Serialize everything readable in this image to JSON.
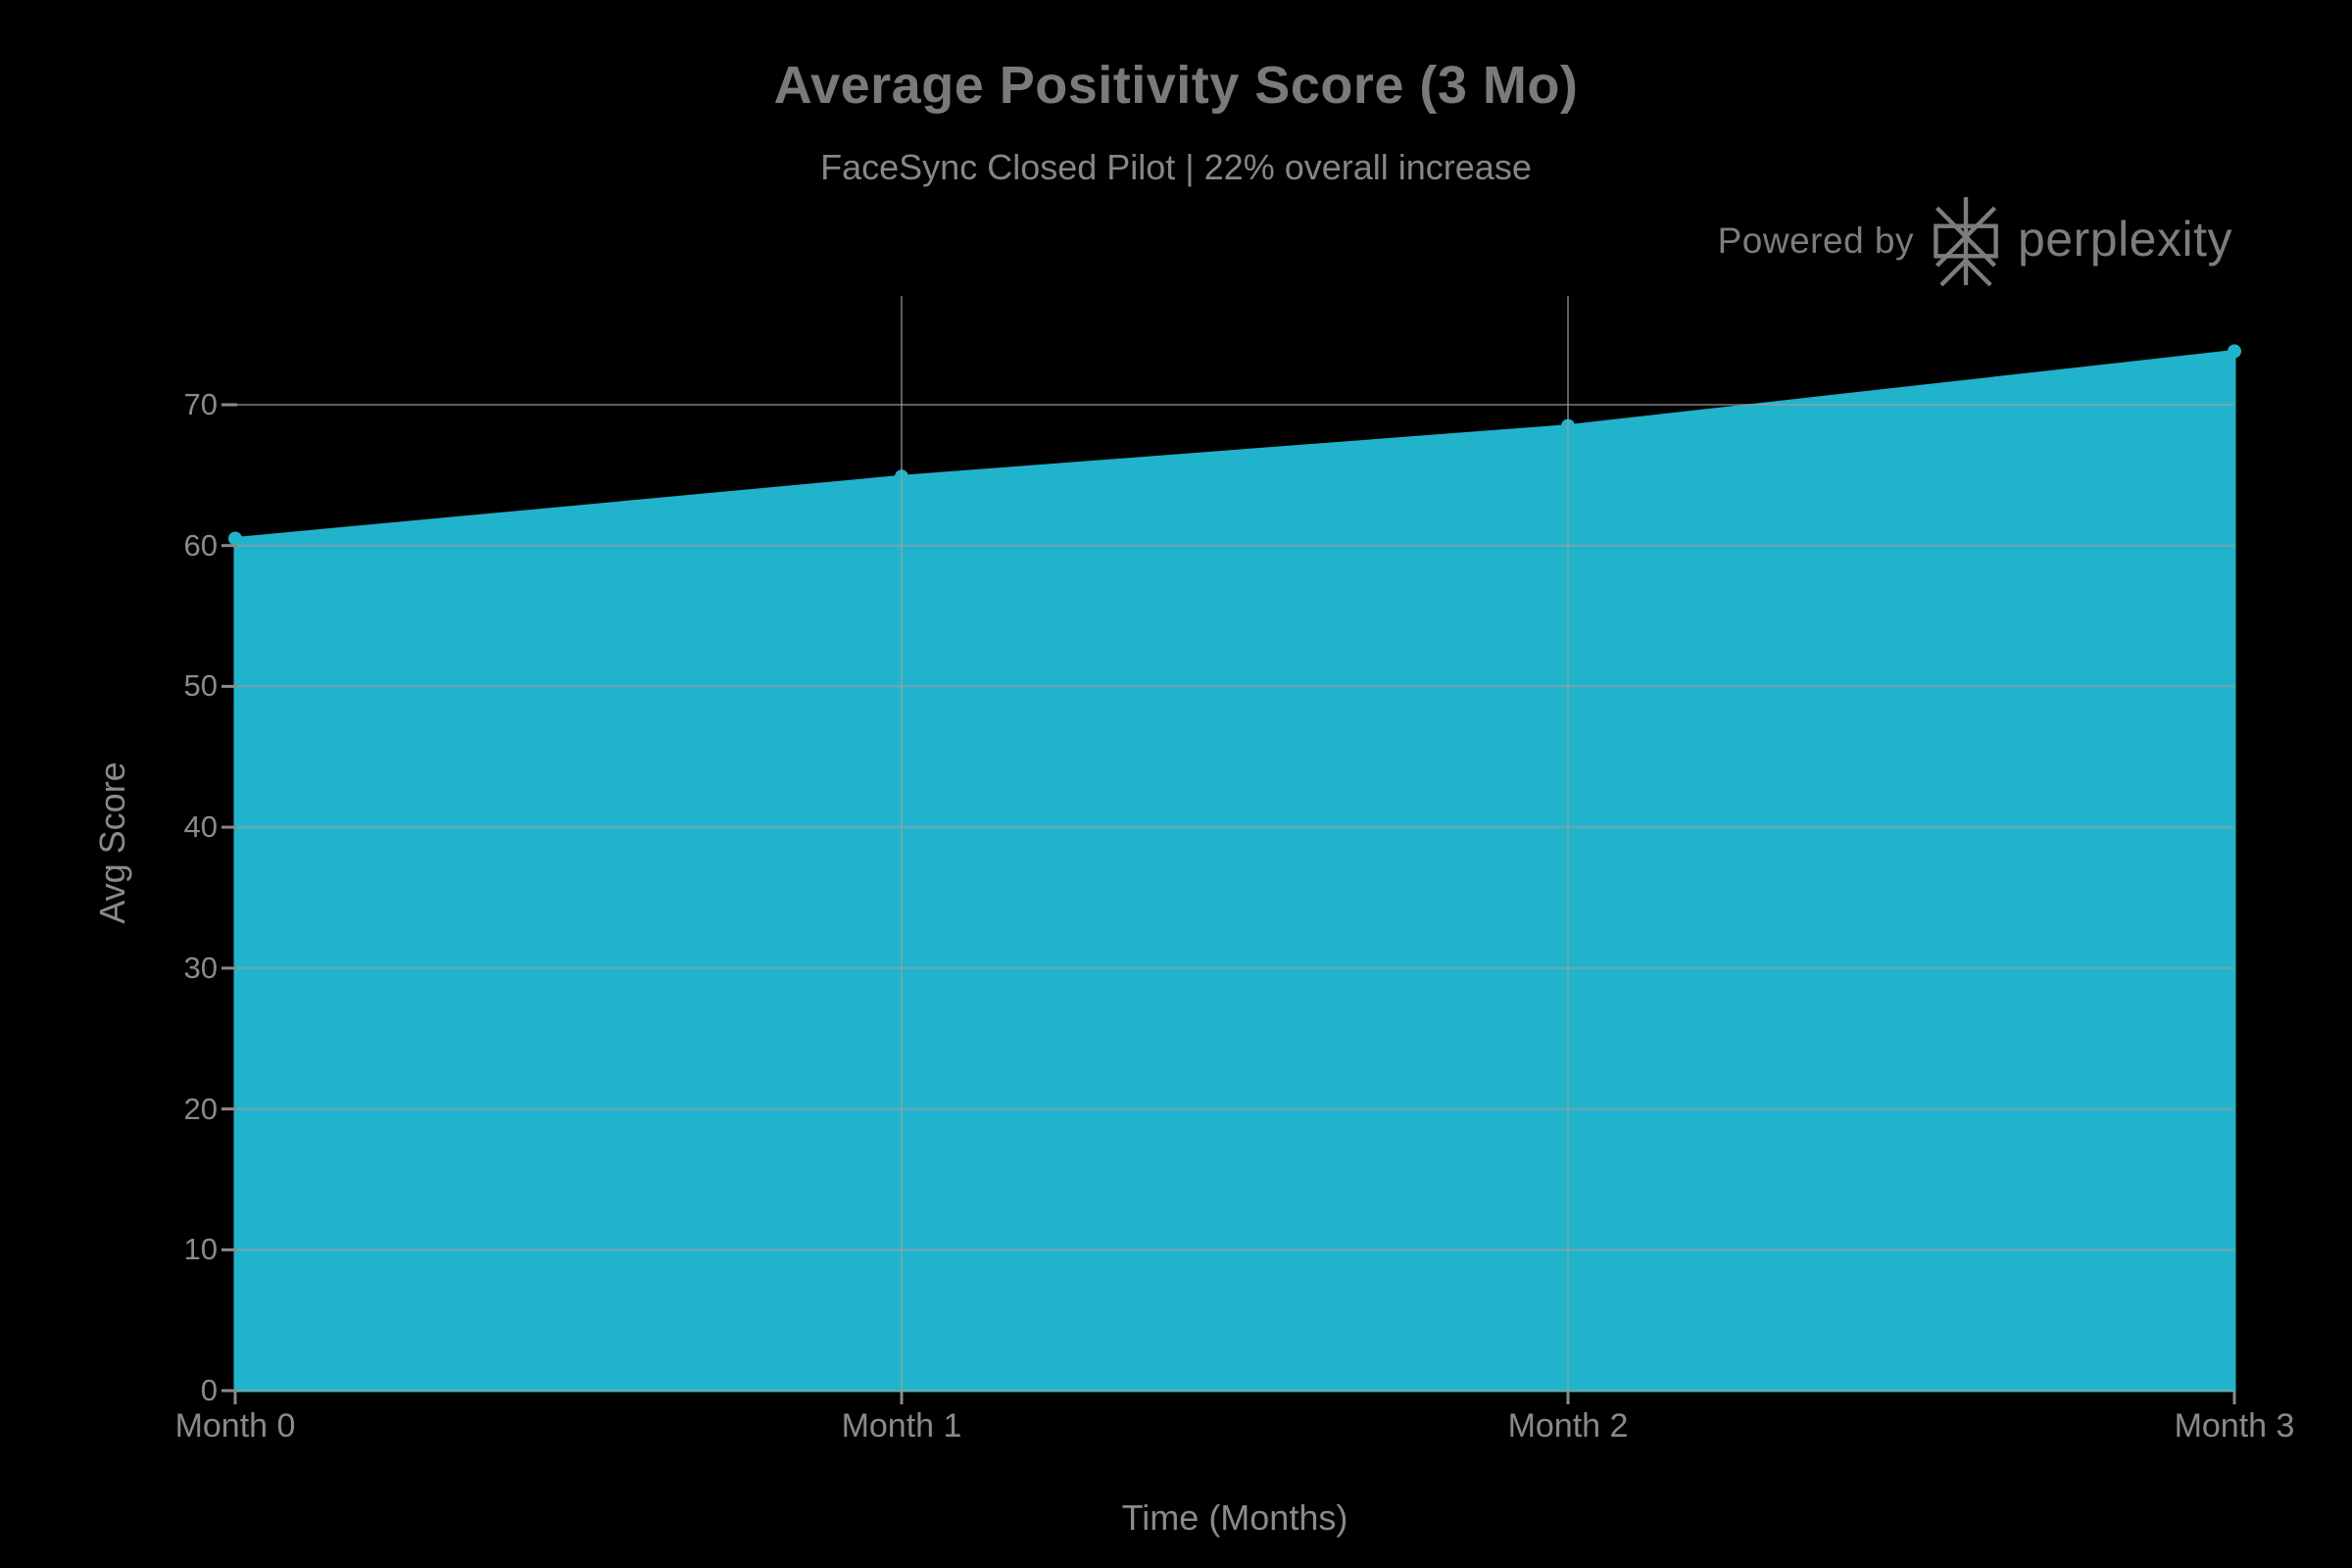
{
  "header": {
    "title": "Average Positivity Score (3 Mo)",
    "subtitle": "FaceSync Closed Pilot | 22% overall increase"
  },
  "branding": {
    "powered_by_label": "Powered by",
    "brand_name": "perplexity",
    "logo_icon": "perplexity-asterisk-icon",
    "color": "#7d7d7d"
  },
  "chart_data": {
    "type": "area",
    "title": "Average Positivity Score (3 Mo)",
    "subtitle": "FaceSync Closed Pilot | 22% overall increase",
    "xlabel": "Time (Months)",
    "ylabel": "Avg Score",
    "categories": [
      "Month 0",
      "Month 1",
      "Month 2",
      "Month 3"
    ],
    "x": [
      0,
      1,
      2,
      3
    ],
    "values": [
      60.5,
      64.9,
      68.5,
      73.8
    ],
    "yticks": [
      0,
      10,
      20,
      30,
      40,
      50,
      60,
      70
    ],
    "ylim": [
      0,
      77.7
    ],
    "xlim": [
      0,
      3
    ],
    "grid": true,
    "vgrid_at_x": [
      1,
      2
    ],
    "legend": "none",
    "colors": {
      "background": "#000000",
      "area_fill": "#21b3cb",
      "marker": "#21b3cb",
      "gridline": "#9e9e9e",
      "gridline_opacity": 0.6,
      "tick_mark": "#8a8a8a",
      "tick_label": "#8a8a8a",
      "title_text": "#7a7a7a",
      "subtitle_text": "#868686",
      "brand_text": "#7d7d7d"
    }
  }
}
